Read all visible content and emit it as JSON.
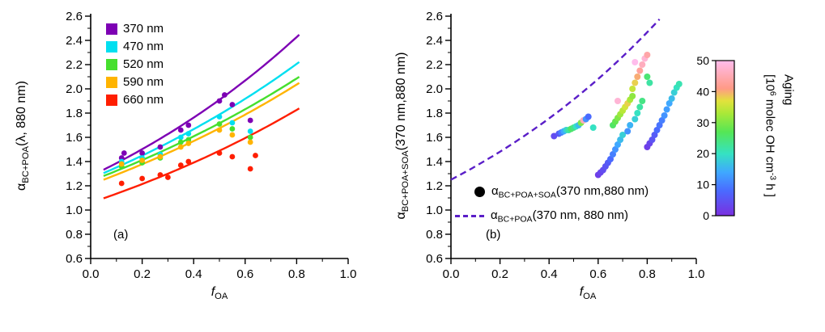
{
  "figure": {
    "background": "#ffffff",
    "panel_a_label": "(a)",
    "panel_b_label": "(b)"
  },
  "text": {
    "ylabel_a": [
      {
        "t": "α"
      },
      {
        "t": "BC+POA",
        "style": "sub"
      },
      {
        "t": "(λ, 880 nm)"
      }
    ],
    "ylabel_b": [
      {
        "t": "α"
      },
      {
        "t": "BC+POA+SOA",
        "style": "sub"
      },
      {
        "t": "(370 nm,880 nm)"
      }
    ],
    "xlabel": [
      {
        "t": "f",
        "style": "i"
      },
      {
        "t": "OA",
        "style": "sub"
      }
    ],
    "legend_b_line1": [
      {
        "t": "α"
      },
      {
        "t": "BC+POA+SOA",
        "style": "sub"
      },
      {
        "t": "(370 nm,880 nm)"
      }
    ],
    "legend_b_line2": [
      {
        "t": "α"
      },
      {
        "t": "BC+POA",
        "style": "sub"
      },
      {
        "t": "(370 nm, 880 nm)"
      }
    ],
    "colorbar_label_line1": "Aging",
    "colorbar_label_line2": [
      {
        "t": "[10"
      },
      {
        "t": "6",
        "style": "sup"
      },
      {
        "t": " molec OH cm"
      },
      {
        "t": "-3",
        "style": "sup"
      },
      {
        "t": " h ]"
      }
    ]
  },
  "chart_data": [
    {
      "type": "line+scatter",
      "panel": "a",
      "title": "",
      "xlabel": "f_OA",
      "ylabel": "alpha_BC+POA(lambda, 880 nm)",
      "xlim": [
        0.0,
        1.0
      ],
      "ylim": [
        0.6,
        2.6
      ],
      "xticks": [
        0.0,
        0.2,
        0.4,
        0.6,
        0.8,
        1.0
      ],
      "yticks": [
        0.6,
        0.8,
        1.0,
        1.2,
        1.4,
        1.6,
        1.8,
        2.0,
        2.2,
        2.4,
        2.6
      ],
      "grid": false,
      "legend_position": "top-left",
      "curve_model": "alpha = a * exp(b * f)",
      "series": [
        {
          "name": "370 nm",
          "color": "#7d00b4",
          "curve": {
            "a": 1.28,
            "b": 0.8,
            "frange": [
              0.05,
              0.81
            ]
          },
          "points": [
            [
              0.12,
              1.43
            ],
            [
              0.13,
              1.47
            ],
            [
              0.2,
              1.47
            ],
            [
              0.27,
              1.52
            ],
            [
              0.35,
              1.66
            ],
            [
              0.38,
              1.7
            ],
            [
              0.5,
              1.9
            ],
            [
              0.52,
              1.95
            ],
            [
              0.55,
              1.87
            ],
            [
              0.62,
              1.74
            ]
          ]
        },
        {
          "name": "470 nm",
          "color": "#00dff0",
          "curve": {
            "a": 1.26,
            "b": 0.7,
            "frange": [
              0.05,
              0.81
            ]
          },
          "points": [
            [
              0.12,
              1.4
            ],
            [
              0.2,
              1.43
            ],
            [
              0.27,
              1.46
            ],
            [
              0.35,
              1.6
            ],
            [
              0.38,
              1.63
            ],
            [
              0.5,
              1.77
            ],
            [
              0.55,
              1.72
            ],
            [
              0.62,
              1.65
            ]
          ]
        },
        {
          "name": "520 nm",
          "color": "#46df2e",
          "curve": {
            "a": 1.24,
            "b": 0.65,
            "frange": [
              0.05,
              0.81
            ]
          },
          "points": [
            [
              0.12,
              1.36
            ],
            [
              0.2,
              1.39
            ],
            [
              0.27,
              1.43
            ],
            [
              0.35,
              1.56
            ],
            [
              0.38,
              1.58
            ],
            [
              0.5,
              1.71
            ],
            [
              0.55,
              1.67
            ],
            [
              0.62,
              1.6
            ]
          ]
        },
        {
          "name": "590 nm",
          "color": "#ffb400",
          "curve": {
            "a": 1.21,
            "b": 0.65,
            "frange": [
              0.05,
              0.81
            ]
          },
          "points": [
            [
              0.12,
              1.38
            ],
            [
              0.2,
              1.41
            ],
            [
              0.27,
              1.44
            ],
            [
              0.35,
              1.52
            ],
            [
              0.38,
              1.55
            ],
            [
              0.5,
              1.66
            ],
            [
              0.55,
              1.62
            ],
            [
              0.62,
              1.56
            ]
          ]
        },
        {
          "name": "660 nm",
          "color": "#ff1e00",
          "curve": {
            "a": 1.06,
            "b": 0.68,
            "frange": [
              0.05,
              0.81
            ]
          },
          "points": [
            [
              0.12,
              1.22
            ],
            [
              0.2,
              1.26
            ],
            [
              0.27,
              1.29
            ],
            [
              0.3,
              1.27
            ],
            [
              0.35,
              1.37
            ],
            [
              0.38,
              1.4
            ],
            [
              0.5,
              1.47
            ],
            [
              0.55,
              1.44
            ],
            [
              0.62,
              1.34
            ],
            [
              0.64,
              1.45
            ]
          ]
        }
      ]
    },
    {
      "type": "scatter",
      "panel": "b",
      "title": "",
      "xlabel": "f_OA",
      "ylabel": "alpha_BC+POA+SOA(370 nm, 880 nm)",
      "xlim": [
        0.0,
        1.0
      ],
      "ylim": [
        0.6,
        2.6
      ],
      "xticks": [
        0.0,
        0.2,
        0.4,
        0.6,
        0.8,
        1.0
      ],
      "yticks": [
        0.6,
        0.8,
        1.0,
        1.2,
        1.4,
        1.6,
        1.8,
        2.0,
        2.2,
        2.4,
        2.6
      ],
      "grid": false,
      "curve_model": "alpha = a * exp(b * f)",
      "curve": {
        "name": "alpha_BC+POA(370 nm, 880 nm)",
        "color": "#5a1ec8",
        "style": "dashed",
        "a": 1.25,
        "b": 0.85,
        "frange": [
          0.0,
          0.85
        ]
      },
      "points_format": [
        "f_OA",
        "alpha",
        "aging_1e6_molec_OH_cm-3_h"
      ],
      "points": [
        [
          0.42,
          1.61,
          4
        ],
        [
          0.44,
          1.63,
          6
        ],
        [
          0.45,
          1.64,
          10
        ],
        [
          0.46,
          1.65,
          14
        ],
        [
          0.47,
          1.66,
          18
        ],
        [
          0.48,
          1.66,
          22
        ],
        [
          0.49,
          1.67,
          26
        ],
        [
          0.5,
          1.68,
          24
        ],
        [
          0.51,
          1.69,
          20
        ],
        [
          0.52,
          1.7,
          16
        ],
        [
          0.53,
          1.72,
          30
        ],
        [
          0.54,
          1.74,
          46
        ],
        [
          0.55,
          1.75,
          12
        ],
        [
          0.56,
          1.77,
          8
        ],
        [
          0.58,
          1.68,
          20
        ],
        [
          0.6,
          1.29,
          2
        ],
        [
          0.61,
          1.31,
          3
        ],
        [
          0.62,
          1.33,
          4
        ],
        [
          0.63,
          1.36,
          5
        ],
        [
          0.64,
          1.39,
          6
        ],
        [
          0.65,
          1.42,
          8
        ],
        [
          0.66,
          1.46,
          10
        ],
        [
          0.67,
          1.5,
          12
        ],
        [
          0.68,
          1.54,
          14
        ],
        [
          0.69,
          1.58,
          16
        ],
        [
          0.7,
          1.62,
          18
        ],
        [
          0.66,
          1.7,
          26
        ],
        [
          0.67,
          1.73,
          28
        ],
        [
          0.68,
          1.76,
          30
        ],
        [
          0.68,
          1.9,
          48
        ],
        [
          0.69,
          1.79,
          32
        ],
        [
          0.7,
          1.82,
          34
        ],
        [
          0.71,
          1.85,
          36
        ],
        [
          0.72,
          1.88,
          38
        ],
        [
          0.73,
          1.91,
          33
        ],
        [
          0.74,
          1.94,
          31
        ],
        [
          0.72,
          1.65,
          12
        ],
        [
          0.73,
          1.7,
          15
        ],
        [
          0.75,
          1.75,
          18
        ],
        [
          0.76,
          1.8,
          20
        ],
        [
          0.77,
          1.85,
          22
        ],
        [
          0.78,
          1.9,
          24
        ],
        [
          0.74,
          2.0,
          35
        ],
        [
          0.75,
          2.05,
          38
        ],
        [
          0.75,
          2.22,
          50
        ],
        [
          0.76,
          2.1,
          40
        ],
        [
          0.77,
          2.15,
          43
        ],
        [
          0.78,
          2.2,
          46
        ],
        [
          0.79,
          2.25,
          48
        ],
        [
          0.8,
          2.28,
          44
        ],
        [
          0.8,
          2.1,
          25
        ],
        [
          0.81,
          2.05,
          22
        ],
        [
          0.8,
          1.52,
          2
        ],
        [
          0.81,
          1.55,
          3
        ],
        [
          0.82,
          1.58,
          5
        ],
        [
          0.83,
          1.62,
          6
        ],
        [
          0.84,
          1.66,
          8
        ],
        [
          0.85,
          1.7,
          9
        ],
        [
          0.86,
          1.74,
          10
        ],
        [
          0.87,
          1.78,
          12
        ],
        [
          0.88,
          1.83,
          13
        ],
        [
          0.89,
          1.88,
          14
        ],
        [
          0.9,
          1.92,
          16
        ],
        [
          0.91,
          1.97,
          18
        ],
        [
          0.92,
          2.01,
          20
        ],
        [
          0.93,
          2.04,
          21
        ]
      ],
      "colorbar": {
        "label": "Aging [10^6 molec OH cm^-3 h]",
        "min": 0,
        "max": 50,
        "ticks": [
          0,
          10,
          20,
          30,
          40,
          50
        ],
        "stops": [
          {
            "v": 0,
            "c": "#7a2fe0"
          },
          {
            "v": 8,
            "c": "#4a6aff"
          },
          {
            "v": 14,
            "c": "#3fa8ff"
          },
          {
            "v": 20,
            "c": "#35e2c2"
          },
          {
            "v": 27,
            "c": "#55e655"
          },
          {
            "v": 33,
            "c": "#aae838"
          },
          {
            "v": 37,
            "c": "#e2e23c"
          },
          {
            "v": 41,
            "c": "#ff9a86"
          },
          {
            "v": 46,
            "c": "#ffadbe"
          },
          {
            "v": 50,
            "c": "#ffbcec"
          }
        ]
      }
    }
  ]
}
